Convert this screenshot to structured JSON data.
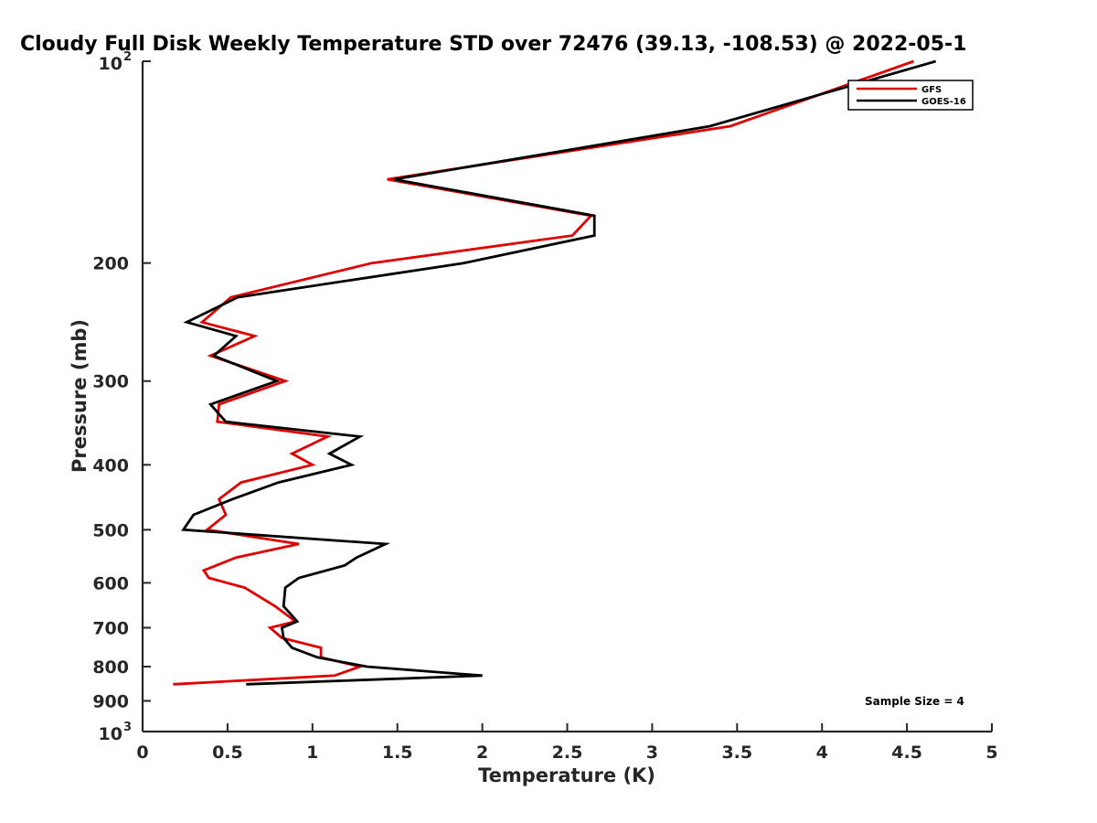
{
  "chart_data": {
    "type": "line",
    "title": "Cloudy Full Disk Weekly Temperature STD over 72476 (39.13, -108.53) @ 2022-05-1",
    "xlabel": "Temperature (K)",
    "ylabel": "Pressure (mb)",
    "xlim": [
      0,
      5
    ],
    "ylim": [
      100,
      1000
    ],
    "y_scale": "log",
    "y_reversed": true,
    "grid": false,
    "x_ticks": [
      {
        "value": 0,
        "label": "0"
      },
      {
        "value": 0.5,
        "label": "0.5"
      },
      {
        "value": 1,
        "label": "1"
      },
      {
        "value": 1.5,
        "label": "1.5"
      },
      {
        "value": 2,
        "label": "2"
      },
      {
        "value": 2.5,
        "label": "2.5"
      },
      {
        "value": 3,
        "label": "3"
      },
      {
        "value": 3.5,
        "label": "3.5"
      },
      {
        "value": 4,
        "label": "4"
      },
      {
        "value": 4.5,
        "label": "4.5"
      },
      {
        "value": 5,
        "label": "5"
      }
    ],
    "y_ticks": [
      {
        "value": 100,
        "base": "10",
        "exp": "2"
      },
      {
        "value": 200,
        "label": "200"
      },
      {
        "value": 300,
        "label": "300"
      },
      {
        "value": 400,
        "label": "400"
      },
      {
        "value": 500,
        "label": "500"
      },
      {
        "value": 600,
        "label": "600"
      },
      {
        "value": 700,
        "label": "700"
      },
      {
        "value": 800,
        "label": "800"
      },
      {
        "value": 900,
        "label": "900"
      },
      {
        "value": 1000,
        "base": "10",
        "exp": "3"
      }
    ],
    "legend_position": "top-right",
    "annotation": "Sample Size = 4",
    "series": [
      {
        "name": "GFS",
        "color": "#e00000",
        "points": [
          [
            4.54,
            100
          ],
          [
            3.46,
            125
          ],
          [
            1.44,
            150
          ],
          [
            2.64,
            170
          ],
          [
            2.53,
            182
          ],
          [
            1.35,
            200
          ],
          [
            0.52,
            225
          ],
          [
            0.35,
            245
          ],
          [
            0.66,
            257
          ],
          [
            0.4,
            275
          ],
          [
            0.84,
            300
          ],
          [
            0.45,
            325
          ],
          [
            0.44,
            345
          ],
          [
            1.09,
            363
          ],
          [
            0.88,
            385
          ],
          [
            1.0,
            400
          ],
          [
            0.58,
            425
          ],
          [
            0.45,
            450
          ],
          [
            0.49,
            475
          ],
          [
            0.38,
            500
          ],
          [
            0.92,
            525
          ],
          [
            0.55,
            550
          ],
          [
            0.36,
            575
          ],
          [
            0.39,
            590
          ],
          [
            0.6,
            610
          ],
          [
            0.78,
            650
          ],
          [
            0.9,
            685
          ],
          [
            0.75,
            700
          ],
          [
            0.82,
            725
          ],
          [
            1.05,
            750
          ],
          [
            1.05,
            775
          ],
          [
            1.28,
            800
          ],
          [
            1.13,
            825
          ],
          [
            0.18,
            850
          ]
        ]
      },
      {
        "name": "GOES-16",
        "color": "#000000",
        "points": [
          [
            4.67,
            100
          ],
          [
            3.34,
            125
          ],
          [
            1.48,
            150
          ],
          [
            2.66,
            170
          ],
          [
            2.66,
            182
          ],
          [
            1.89,
            200
          ],
          [
            0.56,
            225
          ],
          [
            0.26,
            245
          ],
          [
            0.55,
            257
          ],
          [
            0.42,
            275
          ],
          [
            0.79,
            300
          ],
          [
            0.4,
            325
          ],
          [
            0.49,
            345
          ],
          [
            1.28,
            363
          ],
          [
            1.1,
            385
          ],
          [
            1.23,
            400
          ],
          [
            0.8,
            425
          ],
          [
            0.53,
            450
          ],
          [
            0.3,
            475
          ],
          [
            0.24,
            500
          ],
          [
            1.43,
            525
          ],
          [
            1.26,
            550
          ],
          [
            1.19,
            565
          ],
          [
            0.92,
            590
          ],
          [
            0.84,
            610
          ],
          [
            0.83,
            650
          ],
          [
            0.91,
            685
          ],
          [
            0.82,
            700
          ],
          [
            0.83,
            725
          ],
          [
            0.88,
            750
          ],
          [
            1.03,
            775
          ],
          [
            1.32,
            800
          ],
          [
            2.0,
            825
          ],
          [
            0.61,
            850
          ]
        ]
      }
    ]
  }
}
